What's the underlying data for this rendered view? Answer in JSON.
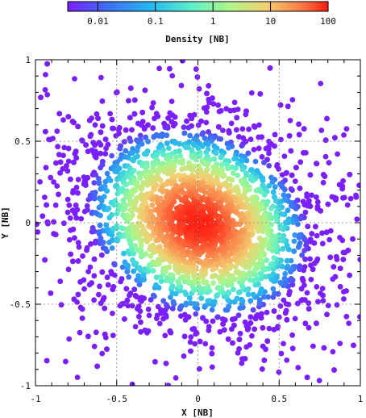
{
  "chart_data": {
    "type": "heatmap",
    "title": "",
    "xlabel": "X [NB]",
    "ylabel": "Y [NB]",
    "xlim": [
      -1,
      1
    ],
    "ylim": [
      -1,
      1
    ],
    "x_ticks": [
      "-1",
      "-0.5",
      "0",
      "0.5",
      "1"
    ],
    "y_ticks": [
      "-1",
      "-0.5",
      "0",
      "0.5",
      "1"
    ],
    "grid": true,
    "colorbar": {
      "label": "Density [NB]",
      "scale": "log",
      "range": [
        0.003,
        100
      ],
      "ticks": [
        "0.01",
        "0.1",
        "1",
        "10",
        "100"
      ],
      "placement": "top",
      "colormap": "rainbow (purple-blue-cyan-green-yellow-orange-red)"
    },
    "distribution": {
      "shape": "elliptical blob, densest at center, tilted with major axis from upper-left to lower-right",
      "peak_density": 100,
      "center": [
        0,
        0
      ],
      "extent_x": [
        -1,
        1
      ],
      "extent_y": [
        -1,
        1
      ]
    }
  }
}
